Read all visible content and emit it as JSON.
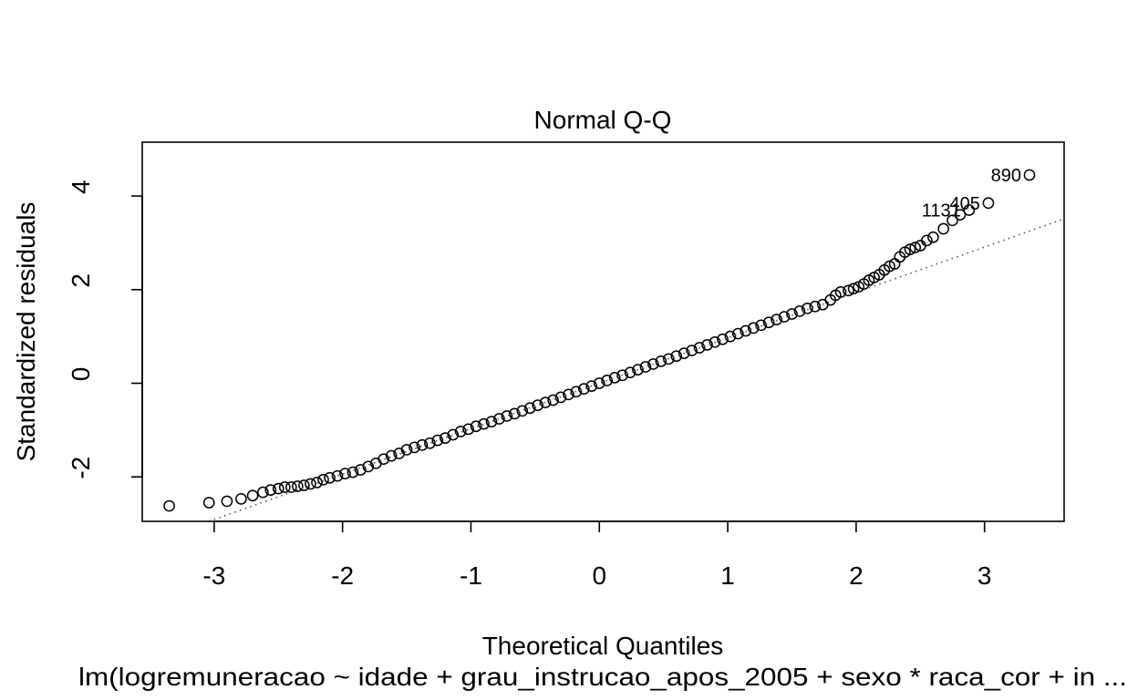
{
  "chart_data": {
    "type": "scatter",
    "title": "Normal Q-Q",
    "xlabel": "Theoretical Quantiles",
    "ylabel": "Standardized residuals",
    "subtitle": "lm(logremuneracao ~ idade + grau_instrucao_apos_2005 + sexo * raca_cor + in ...",
    "xlim": [
      -3.56,
      3.62
    ],
    "ylim": [
      -2.95,
      5.15
    ],
    "x_ticks": [
      -3,
      -2,
      -1,
      0,
      1,
      2,
      3
    ],
    "x_tick_labels": [
      "-3",
      "-2",
      "-1",
      "0",
      "1",
      "2",
      "3"
    ],
    "y_ticks": [
      -2,
      0,
      2,
      4
    ],
    "y_tick_labels": [
      "-2",
      "0",
      "2",
      "4"
    ],
    "reference_line": {
      "slope": 0.97,
      "intercept": 0.0,
      "style": "dotted"
    },
    "labeled_points": [
      {
        "label": "890",
        "x": 3.35,
        "y": 4.45
      },
      {
        "label": "405",
        "x": 3.03,
        "y": 3.85
      },
      {
        "label": "1131",
        "x": 2.88,
        "y": 3.7
      }
    ],
    "points": [
      [
        -3.35,
        -2.62
      ],
      [
        -3.04,
        -2.55
      ],
      [
        -2.9,
        -2.52
      ],
      [
        -2.79,
        -2.47
      ],
      [
        -2.7,
        -2.4
      ],
      [
        -2.62,
        -2.33
      ],
      [
        -2.56,
        -2.28
      ],
      [
        -2.5,
        -2.25
      ],
      [
        -2.45,
        -2.22
      ],
      [
        -2.4,
        -2.22
      ],
      [
        -2.35,
        -2.2
      ],
      [
        -2.3,
        -2.18
      ],
      [
        -2.25,
        -2.15
      ],
      [
        -2.2,
        -2.12
      ],
      [
        -2.15,
        -2.06
      ],
      [
        -2.1,
        -2.02
      ],
      [
        -2.04,
        -1.98
      ],
      [
        -1.98,
        -1.93
      ],
      [
        -1.92,
        -1.9
      ],
      [
        -1.86,
        -1.85
      ],
      [
        -1.8,
        -1.78
      ],
      [
        -1.74,
        -1.71
      ],
      [
        -1.68,
        -1.62
      ],
      [
        -1.62,
        -1.55
      ],
      [
        -1.56,
        -1.5
      ],
      [
        -1.5,
        -1.42
      ],
      [
        -1.44,
        -1.37
      ],
      [
        -1.38,
        -1.32
      ],
      [
        -1.32,
        -1.28
      ],
      [
        -1.26,
        -1.22
      ],
      [
        -1.2,
        -1.17
      ],
      [
        -1.14,
        -1.1
      ],
      [
        -1.08,
        -1.03
      ],
      [
        -1.02,
        -0.98
      ],
      [
        -0.96,
        -0.92
      ],
      [
        -0.9,
        -0.87
      ],
      [
        -0.84,
        -0.82
      ],
      [
        -0.78,
        -0.76
      ],
      [
        -0.72,
        -0.7
      ],
      [
        -0.66,
        -0.65
      ],
      [
        -0.6,
        -0.59
      ],
      [
        -0.54,
        -0.53
      ],
      [
        -0.48,
        -0.47
      ],
      [
        -0.42,
        -0.41
      ],
      [
        -0.36,
        -0.36
      ],
      [
        -0.3,
        -0.3
      ],
      [
        -0.24,
        -0.24
      ],
      [
        -0.18,
        -0.18
      ],
      [
        -0.12,
        -0.12
      ],
      [
        -0.06,
        -0.06
      ],
      [
        0.0,
        0.0
      ],
      [
        0.06,
        0.06
      ],
      [
        0.12,
        0.12
      ],
      [
        0.18,
        0.17
      ],
      [
        0.24,
        0.23
      ],
      [
        0.3,
        0.29
      ],
      [
        0.36,
        0.35
      ],
      [
        0.42,
        0.41
      ],
      [
        0.48,
        0.47
      ],
      [
        0.54,
        0.52
      ],
      [
        0.6,
        0.58
      ],
      [
        0.66,
        0.64
      ],
      [
        0.72,
        0.7
      ],
      [
        0.78,
        0.76
      ],
      [
        0.84,
        0.82
      ],
      [
        0.9,
        0.88
      ],
      [
        0.96,
        0.94
      ],
      [
        1.02,
        1.0
      ],
      [
        1.08,
        1.06
      ],
      [
        1.14,
        1.12
      ],
      [
        1.2,
        1.18
      ],
      [
        1.26,
        1.24
      ],
      [
        1.32,
        1.3
      ],
      [
        1.38,
        1.36
      ],
      [
        1.44,
        1.42
      ],
      [
        1.5,
        1.48
      ],
      [
        1.56,
        1.54
      ],
      [
        1.62,
        1.6
      ],
      [
        1.68,
        1.64
      ],
      [
        1.74,
        1.68
      ],
      [
        1.8,
        1.78
      ],
      [
        1.84,
        1.88
      ],
      [
        1.88,
        1.95
      ],
      [
        1.94,
        1.98
      ],
      [
        1.98,
        2.02
      ],
      [
        2.02,
        2.06
      ],
      [
        2.06,
        2.12
      ],
      [
        2.1,
        2.2
      ],
      [
        2.14,
        2.26
      ],
      [
        2.18,
        2.32
      ],
      [
        2.22,
        2.42
      ],
      [
        2.26,
        2.5
      ],
      [
        2.3,
        2.55
      ],
      [
        2.34,
        2.7
      ],
      [
        2.38,
        2.8
      ],
      [
        2.42,
        2.86
      ],
      [
        2.46,
        2.9
      ],
      [
        2.5,
        2.94
      ],
      [
        2.55,
        3.05
      ],
      [
        2.6,
        3.12
      ],
      [
        2.68,
        3.3
      ],
      [
        2.75,
        3.48
      ],
      [
        2.81,
        3.6
      ]
    ]
  }
}
